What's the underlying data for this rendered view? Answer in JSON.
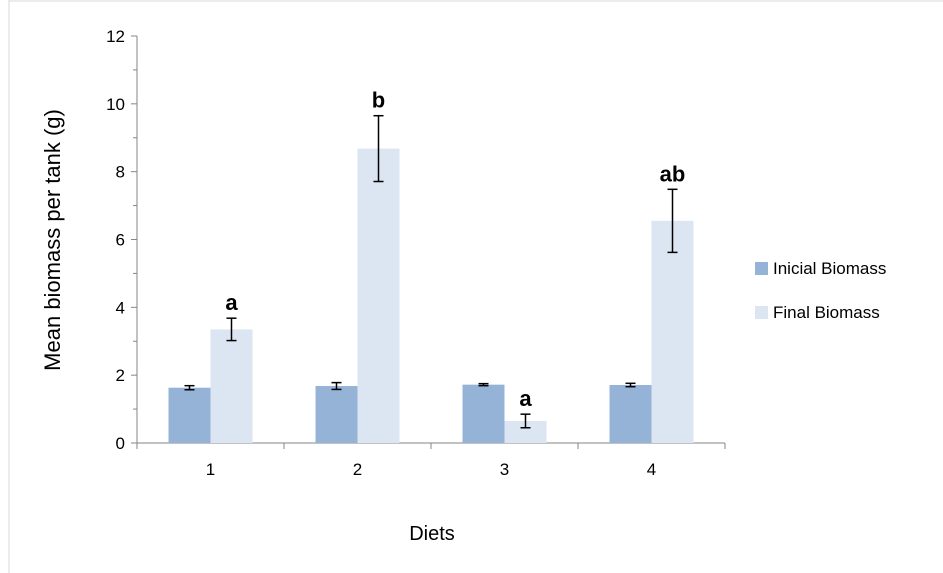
{
  "chart_data": {
    "type": "bar",
    "categories": [
      "1",
      "2",
      "3",
      "4"
    ],
    "xlabel": "Diets",
    "ylabel": "Mean biomass per tank (g)",
    "ylim": [
      0,
      12
    ],
    "yticks": [
      "0",
      "2",
      "4",
      "6",
      "8",
      "10",
      "12"
    ],
    "grid": false,
    "legend_position": "right",
    "series": [
      {
        "name": "Inicial Biomass",
        "color": "#95b3d7",
        "values": [
          1.63,
          1.68,
          1.72,
          1.71
        ],
        "errors": [
          0.06,
          0.1,
          0.03,
          0.05
        ]
      },
      {
        "name": "Final Biomass",
        "color": "#dce6f2",
        "values": [
          3.35,
          8.68,
          0.65,
          6.55
        ],
        "errors": [
          0.33,
          0.97,
          0.2,
          0.93
        ]
      }
    ],
    "significance_labels": [
      "a",
      "b",
      "a",
      "ab"
    ]
  }
}
